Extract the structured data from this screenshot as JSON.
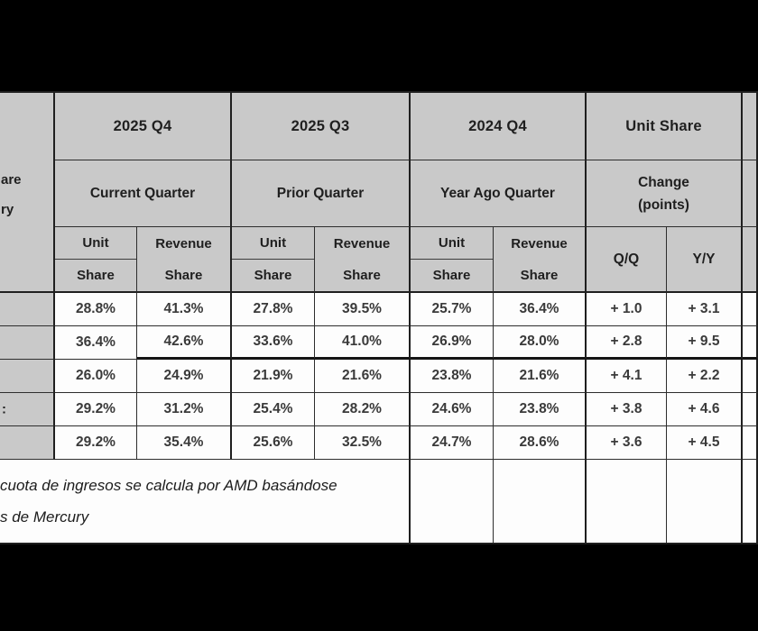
{
  "header": {
    "quarters": [
      {
        "period": "2025 Q4",
        "label": "Current Quarter"
      },
      {
        "period": "2025 Q3",
        "label": "Prior Quarter"
      },
      {
        "period": "2024 Q4",
        "label": "Year Ago Quarter"
      }
    ],
    "change": {
      "title": "Unit Share",
      "line1": "Change",
      "line2": "(points)"
    },
    "cols": {
      "unit_top": "Unit",
      "unit_bottom": "Share",
      "revenue_top": "Revenue",
      "revenue_bottom": "Share",
      "qq": "Q/Q",
      "yy": "Y/Y"
    }
  },
  "fragments": {
    "corner_line1": "are",
    "corner_line2": "ry",
    "row4_label": ":"
  },
  "rows": [
    {
      "c": [
        "28.8%",
        "41.3%",
        "27.8%",
        "39.5%",
        "25.7%",
        "36.4%",
        "+ 1.0",
        "+ 3.1"
      ]
    },
    {
      "c": [
        "36.4%",
        "42.6%",
        "33.6%",
        "41.0%",
        "26.9%",
        "28.0%",
        "+ 2.8",
        "+ 9.5"
      ]
    },
    {
      "c": [
        "26.0%",
        "24.9%",
        "21.9%",
        "21.6%",
        "23.8%",
        "21.6%",
        "+ 4.1",
        "+ 2.2"
      ]
    },
    {
      "c": [
        "29.2%",
        "31.2%",
        "25.4%",
        "28.2%",
        "24.6%",
        "23.8%",
        "+ 3.8",
        "+ 4.6"
      ]
    },
    {
      "c": [
        "29.2%",
        "35.4%",
        "25.6%",
        "32.5%",
        "24.7%",
        "28.6%",
        "+ 3.6",
        "+ 4.5"
      ]
    }
  ],
  "footnote": {
    "line1": "cuota de ingresos se calcula por AMD basándose",
    "line2": "s de Mercury"
  },
  "colors": {
    "header_bg": "#c9c9c9",
    "cell_bg": "#fdfdfd",
    "border": "#2d2d2d",
    "frame": "#000000"
  }
}
